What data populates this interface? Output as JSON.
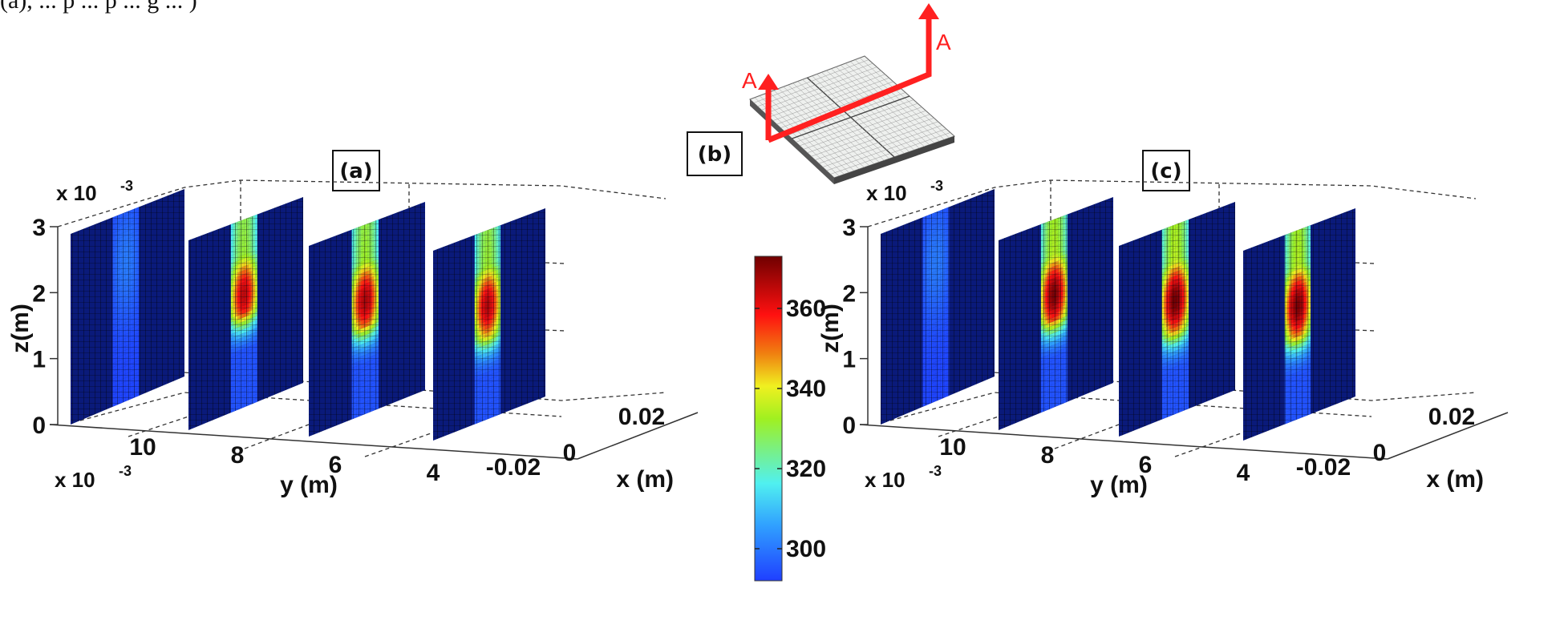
{
  "caption_fragment": "(a), ... p ... p ... g ... )",
  "chart_data": [
    {
      "id": "a",
      "type": "heatmap",
      "panel_label": "(a)",
      "title": "(a)",
      "xlabel": "x (m)",
      "ylabel": "y (m)",
      "zlabel": "z(m)",
      "z_multiplier_label": "x 10-3",
      "y_multiplier_label": "x 10-3",
      "z_ticks": [
        "0",
        "1",
        "2",
        "3"
      ],
      "y_ticks": [
        "10",
        "8",
        "6",
        "4"
      ],
      "x_ticks": [
        "-0.02",
        "0",
        "0.02"
      ],
      "zlim": [
        0,
        0.003
      ],
      "ylim": [
        0.003,
        0.011
      ],
      "xlim": [
        -0.025,
        0.025
      ],
      "grid": true,
      "slices": [
        {
          "y_position_mm": 10.5,
          "peak_temperature": 300,
          "hot_band_z_range_mm": [
            1.2,
            3.0
          ],
          "description": "near-ambient, faint blue band"
        },
        {
          "y_position_mm": 8.3,
          "peak_temperature": 365,
          "hot_band_z_range_mm": [
            0.9,
            3.0
          ],
          "description": "red core 1.3-2.3 mm, green at top and bottom"
        },
        {
          "y_position_mm": 5.8,
          "peak_temperature": 367,
          "hot_band_z_range_mm": [
            0.8,
            3.0
          ],
          "description": "red core 1.2-2.4 mm"
        },
        {
          "y_position_mm": 3.3,
          "peak_temperature": 366,
          "hot_band_z_range_mm": [
            0.7,
            3.0
          ],
          "description": "red core 1.3-2.3 mm"
        }
      ],
      "band_x_range": [
        -0.004,
        0.004
      ]
    },
    {
      "id": "b",
      "type": "diagram",
      "panel_label": "(b)",
      "section_labels": [
        "A",
        "A"
      ],
      "description": "meshed plate with section line A-A"
    },
    {
      "id": "c",
      "type": "heatmap",
      "panel_label": "(c)",
      "title": "(c)",
      "xlabel": "x (m)",
      "ylabel": "y (m)",
      "zlabel": "z(m)",
      "z_multiplier_label": "x 10-3",
      "y_multiplier_label": "x 10-3",
      "z_ticks": [
        "0",
        "1",
        "2",
        "3"
      ],
      "y_ticks": [
        "10",
        "8",
        "6",
        "4"
      ],
      "x_ticks": [
        "-0.02",
        "0",
        "0.02"
      ],
      "zlim": [
        0,
        0.003
      ],
      "ylim": [
        0.003,
        0.011
      ],
      "xlim": [
        -0.025,
        0.025
      ],
      "grid": true,
      "slices": [
        {
          "y_position_mm": 10.5,
          "peak_temperature": 300,
          "hot_band_z_range_mm": [
            1.0,
            3.0
          ],
          "description": "near-ambient, faint blue band"
        },
        {
          "y_position_mm": 8.3,
          "peak_temperature": 372,
          "hot_band_z_range_mm": [
            0.8,
            3.0
          ],
          "description": "dark-red core near 1.5 mm"
        },
        {
          "y_position_mm": 5.8,
          "peak_temperature": 373,
          "hot_band_z_range_mm": [
            0.7,
            3.0
          ],
          "description": "dark-red core near 1.5 mm"
        },
        {
          "y_position_mm": 3.3,
          "peak_temperature": 372,
          "hot_band_z_range_mm": [
            0.7,
            3.0
          ],
          "description": "dark-red core near 1.6 mm"
        }
      ],
      "band_x_range": [
        -0.004,
        0.004
      ]
    }
  ],
  "colorbar": {
    "ticks": [
      "300",
      "320",
      "340",
      "360"
    ],
    "tick_values": [
      300,
      320,
      340,
      360
    ],
    "range": [
      292,
      373
    ],
    "colormap": "jet"
  },
  "colors": {
    "section_line": "#ff2020",
    "background_cell": "#0a1a7a",
    "grid": "#333333"
  }
}
